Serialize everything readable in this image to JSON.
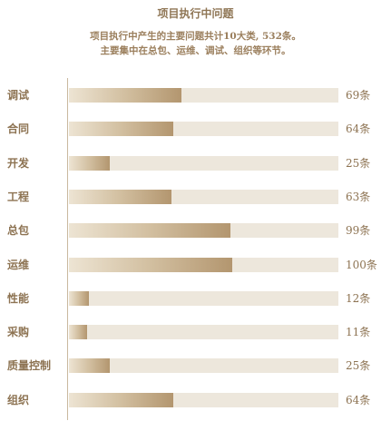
{
  "header": {
    "title": "项目执行中问题",
    "subtitle_line1": "项目执行中产生的主要问题共计10大类, 532条。",
    "subtitle_line2": "主要集中在总包、运维、调试、组织等环节。"
  },
  "chart_data": {
    "type": "bar",
    "orientation": "horizontal",
    "title": "项目执行中问题",
    "categories": [
      "调试",
      "合同",
      "开发",
      "工程",
      "总包",
      "运维",
      "性能",
      "采购",
      "质量控制",
      "组织"
    ],
    "values": [
      69,
      64,
      25,
      63,
      99,
      100,
      12,
      11,
      25,
      64
    ],
    "value_labels": [
      "69条",
      "64条",
      "25条",
      "63条",
      "99条",
      "100条",
      "12条",
      "11条",
      "25条",
      "64条"
    ],
    "xlim": [
      0,
      165
    ],
    "grid": false,
    "legend": "none"
  },
  "colors": {
    "track": "#ede7dc",
    "bar_start": "#ede4d3",
    "bar_end": "#b3966f",
    "text": "#8d7352",
    "axis": "#c9b89f"
  }
}
